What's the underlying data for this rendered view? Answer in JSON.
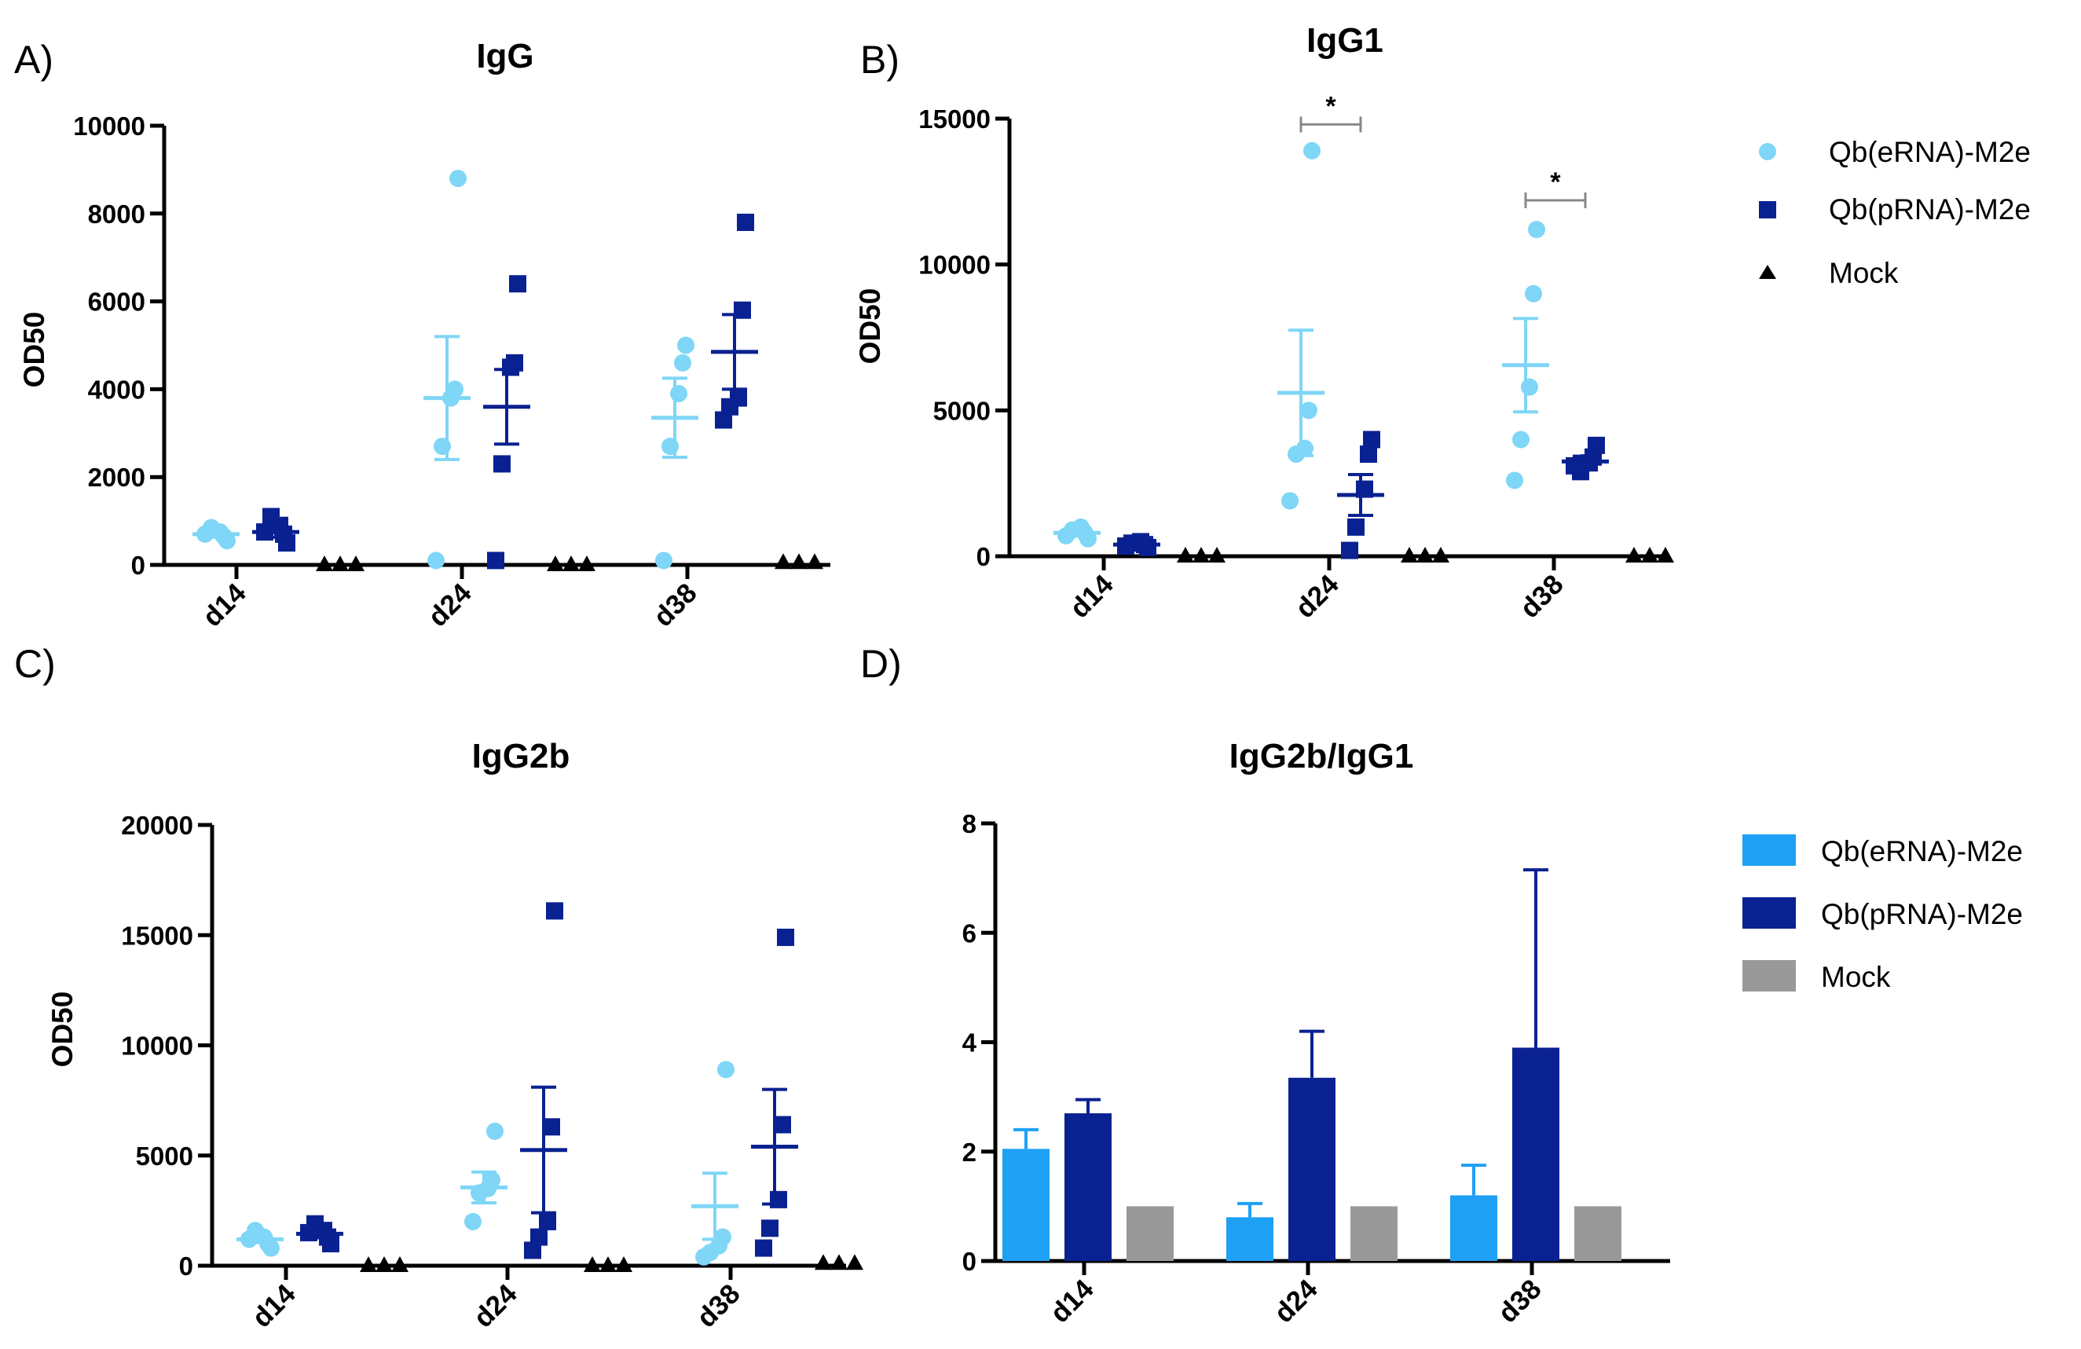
{
  "colors": {
    "erna_point": "#7fd6f6",
    "prna_point": "#0a2191",
    "mock_point": "#000000",
    "erna_bar": "#1ea0f4",
    "prna_bar": "#0a2191",
    "mock_bar": "#999999",
    "sig_bracket": "#888888"
  },
  "chart_data": [
    {
      "type": "scatter",
      "panel_letter": "A)",
      "title": "IgG",
      "ylabel": "OD50",
      "xlabel": "",
      "ylim": [
        0,
        10000
      ],
      "yticks": [
        "0",
        "2000",
        "4000",
        "6000",
        "8000",
        "10000"
      ],
      "categories": [
        "d14",
        "d24",
        "d38"
      ],
      "series": [
        {
          "name": "Qb(eRNA)-M2e",
          "marker": "circle",
          "points": [
            [
              550,
              650,
              750,
              850,
              700
            ],
            [
              8800,
              4000,
              3800,
              2700,
              100
            ],
            [
              5000,
              4600,
              3900,
              2700,
              100
            ]
          ],
          "mean": [
            700,
            3800,
            3350
          ],
          "sem": [
            70,
            1400,
            900
          ]
        },
        {
          "name": "Qb(pRNA)-M2e",
          "marker": "square",
          "points": [
            [
              500,
              700,
              900,
              1100,
              750
            ],
            [
              6400,
              4600,
              4500,
              2300,
              100
            ],
            [
              7800,
              5800,
              3800,
              3600,
              3300
            ]
          ],
          "mean": [
            750,
            3600,
            4850
          ],
          "sem": [
            120,
            850,
            850
          ]
        },
        {
          "name": "Mock",
          "marker": "triangle",
          "points": [
            [
              0,
              0,
              0
            ],
            [
              0,
              0,
              0
            ],
            [
              50,
              50,
              50
            ]
          ],
          "mean": [
            0,
            0,
            0
          ],
          "sem": [
            0,
            0,
            0
          ]
        }
      ],
      "significance": []
    },
    {
      "type": "scatter",
      "panel_letter": "B)",
      "title": "IgG1",
      "ylabel": "OD50",
      "xlabel": "",
      "ylim": [
        0,
        15000
      ],
      "yticks": [
        "0",
        "5000",
        "10000",
        "15000"
      ],
      "categories": [
        "d14",
        "d24",
        "d38"
      ],
      "series": [
        {
          "name": "Qb(eRNA)-M2e",
          "marker": "circle",
          "points": [
            [
              600,
              800,
              1000,
              900,
              700
            ],
            [
              13900,
              5000,
              3700,
              3500,
              1900
            ],
            [
              11200,
              9000,
              5800,
              4000,
              2600
            ]
          ],
          "mean": [
            800,
            5600,
            6550
          ],
          "sem": [
            80,
            2150,
            1600
          ]
        },
        {
          "name": "Qb(pRNA)-M2e",
          "marker": "square",
          "points": [
            [
              300,
              400,
              500,
              450,
              350
            ],
            [
              4000,
              3500,
              2300,
              1000,
              200
            ],
            [
              3800,
              3400,
              3200,
              2900,
              3100
            ]
          ],
          "mean": [
            400,
            2100,
            3250
          ],
          "sem": [
            60,
            700,
            180
          ]
        },
        {
          "name": "Mock",
          "marker": "triangle",
          "points": [
            [
              0,
              0,
              0
            ],
            [
              0,
              0,
              0
            ],
            [
              0,
              0,
              0
            ]
          ],
          "mean": [
            0,
            0,
            0
          ],
          "sem": [
            0,
            0,
            0
          ]
        }
      ],
      "significance": [
        {
          "category": "d24",
          "y": 14800,
          "label": "*"
        },
        {
          "category": "d38",
          "y": 12200,
          "label": "*"
        }
      ]
    },
    {
      "type": "scatter",
      "panel_letter": "C)",
      "title": "IgG2b",
      "ylabel": "OD50",
      "xlabel": "",
      "ylim": [
        0,
        20000
      ],
      "yticks": [
        "0",
        "5000",
        "10000",
        "15000",
        "20000"
      ],
      "categories": [
        "d14",
        "d24",
        "d38"
      ],
      "series": [
        {
          "name": "Qb(eRNA)-M2e",
          "marker": "circle",
          "points": [
            [
              800,
              1000,
              1300,
              1600,
              1200
            ],
            [
              6100,
              3900,
              3500,
              3300,
              2000
            ],
            [
              8900,
              1300,
              900,
              600,
              400
            ]
          ],
          "mean": [
            1200,
            3550,
            2700
          ],
          "sem": [
            150,
            700,
            1500
          ]
        },
        {
          "name": "Qb(pRNA)-M2e",
          "marker": "square",
          "points": [
            [
              1000,
              1300,
              1600,
              1900,
              1500
            ],
            [
              16100,
              6300,
              2000,
              1300,
              700
            ],
            [
              14900,
              6400,
              3000,
              1700,
              800
            ]
          ],
          "mean": [
            1450,
            5250,
            5400
          ],
          "sem": [
            180,
            2850,
            2600
          ]
        },
        {
          "name": "Mock",
          "marker": "triangle",
          "points": [
            [
              0,
              0,
              0
            ],
            [
              0,
              0,
              0
            ],
            [
              100,
              100,
              100
            ]
          ],
          "mean": [
            0,
            0,
            0
          ],
          "sem": [
            0,
            0,
            0
          ]
        }
      ],
      "significance": []
    },
    {
      "type": "bar",
      "panel_letter": "D)",
      "title": "IgG2b/IgG1",
      "ylabel": "",
      "xlabel": "",
      "ylim": [
        0,
        8
      ],
      "yticks": [
        "0",
        "2",
        "4",
        "6",
        "8"
      ],
      "categories": [
        "d14",
        "d24",
        "d38"
      ],
      "series": [
        {
          "name": "Qb(eRNA)-M2e",
          "values": [
            2.05,
            0.8,
            1.2
          ],
          "err": [
            0.35,
            0.25,
            0.55
          ]
        },
        {
          "name": "Qb(pRNA)-M2e",
          "values": [
            2.7,
            3.35,
            3.9
          ],
          "err": [
            0.25,
            0.85,
            3.25
          ]
        },
        {
          "name": "Mock",
          "values": [
            1.0,
            1.0,
            1.0
          ],
          "err": [
            0,
            0,
            0
          ]
        }
      ]
    }
  ],
  "legends": {
    "top": [
      "Qb(eRNA)-M2e",
      "Qb(pRNA)-M2e",
      "Mock"
    ],
    "bottom": [
      "Qb(eRNA)-M2e",
      "Qb(pRNA)-M2e",
      "Mock"
    ]
  }
}
